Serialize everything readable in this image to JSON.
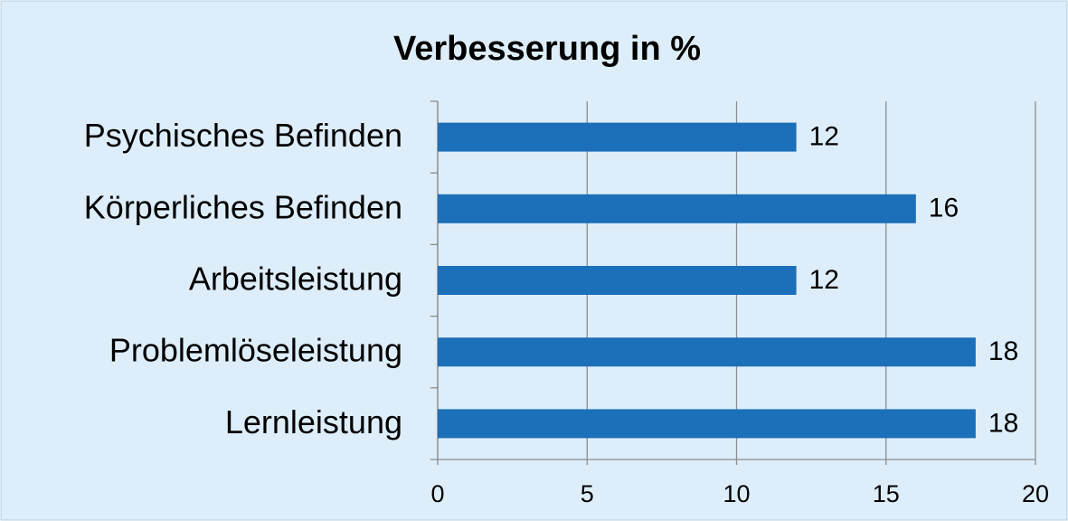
{
  "chart_data": {
    "type": "bar",
    "orientation": "horizontal",
    "title": "Verbesserung in %",
    "categories": [
      "Psychisches Befinden",
      "Körperliches Befinden",
      "Arbeitsleistung",
      "Problemlöseleistung",
      "Lernleistung"
    ],
    "values": [
      12,
      16,
      12,
      18,
      18
    ],
    "color": "#1c6fb9",
    "xlim": [
      0,
      20
    ],
    "xticks": [
      0,
      5,
      10,
      15,
      20
    ],
    "grid": true
  }
}
